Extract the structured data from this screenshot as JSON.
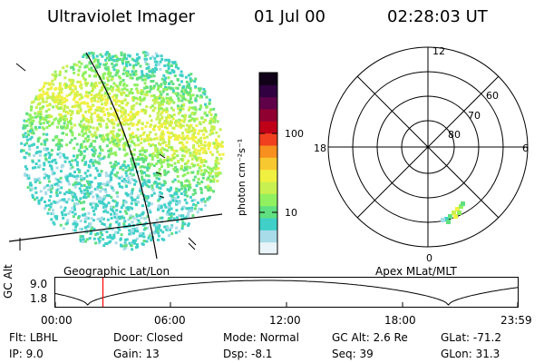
{
  "header": {
    "instrument": "Ultraviolet Imager",
    "date": "01 Jul 00",
    "time": "02:28:03 UT"
  },
  "geo_panel": {
    "label": "Geographic Lat/Lon"
  },
  "polar_panel": {
    "label": "Apex MLat/MLT",
    "mlt_labels": {
      "top": "12",
      "left": "18",
      "right": "6",
      "bottom": "0"
    },
    "lat_labels": [
      "60",
      "70",
      "80"
    ]
  },
  "colorbar": {
    "unit_label": "photon cm⁻²s⁻¹",
    "ticks": [
      "100",
      "10"
    ],
    "colors": [
      "#e8f4f8",
      "#a8dce8",
      "#40d0c8",
      "#60e080",
      "#90f060",
      "#c8f050",
      "#f0f040",
      "#f8c830",
      "#f89020",
      "#f04020",
      "#c00018",
      "#900030",
      "#600048",
      "#300040",
      "#100018"
    ]
  },
  "altitude_plot": {
    "y_title": "GC Alt",
    "y_ticks": [
      "9.0",
      "1.8"
    ],
    "x_ticks": [
      "00:00",
      "06:00",
      "12:00",
      "18:00",
      "23:59"
    ],
    "marker_time": "02:28",
    "curve_color": "#000000",
    "marker_color": "#ff0000"
  },
  "info": {
    "flt_label": "Flt:",
    "flt_value": "LBHL",
    "ip_label": "IP:",
    "ip_value": "9.0",
    "door_label": "Door:",
    "door_value": "Closed",
    "gain_label": "Gain:",
    "gain_value": "13",
    "mode_label": "Mode:",
    "mode_value": "Normal",
    "dsp_label": "Dsp:",
    "dsp_value": "-8.1",
    "gcalt_label": "GC Alt:",
    "gcalt_value": "2.6 Re",
    "seq_label": "Seq:",
    "seq_value": "39",
    "glat_label": "GLat:",
    "glat_value": "-71.2",
    "glon_label": "GLon:",
    "glon_value": "31.3"
  }
}
